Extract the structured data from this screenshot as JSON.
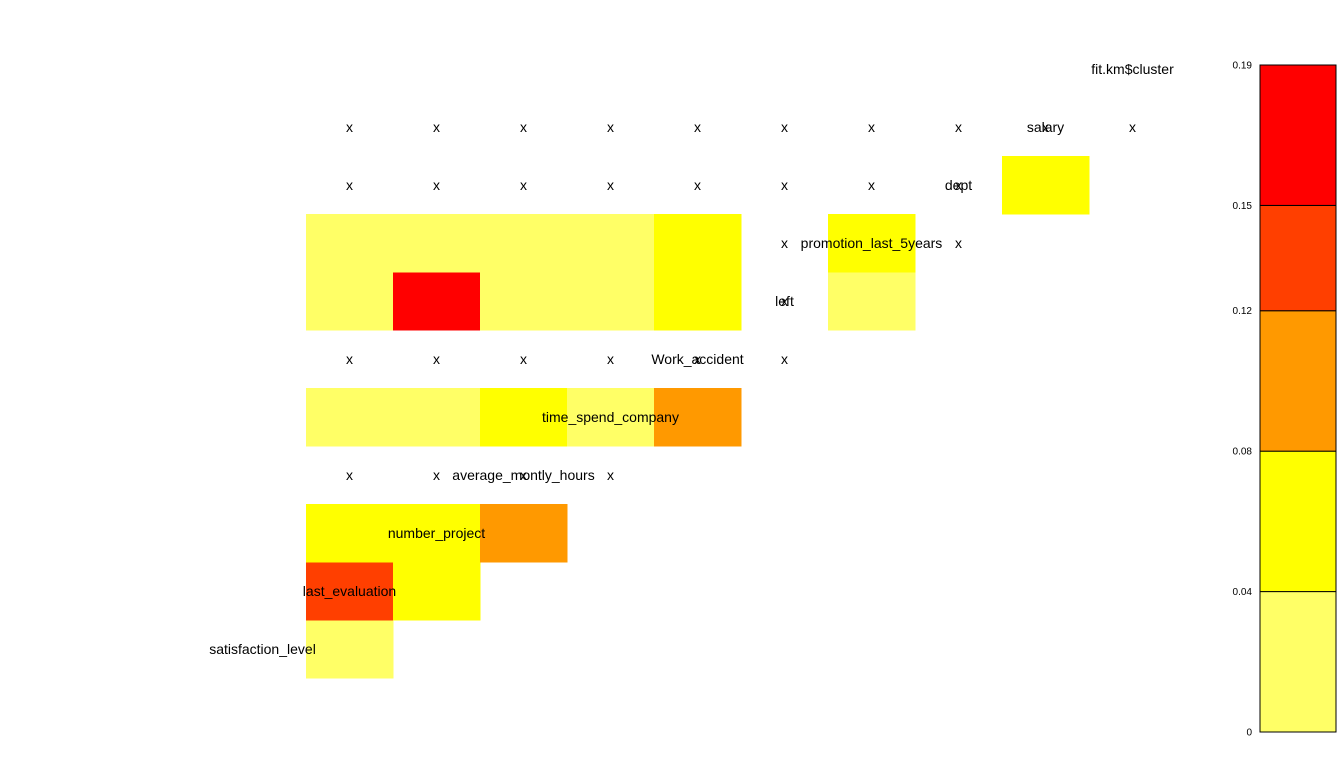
{
  "chart_data": {
    "type": "heatmap",
    "layout": "lower-triangular",
    "variables": [
      "satisfaction_level",
      "last_evaluation",
      "number_project",
      "average_montly_hours",
      "time_spend_company",
      "Work_accident",
      "left",
      "promotion_last_5years",
      "dept",
      "salary",
      "fit.km$cluster"
    ],
    "missing_mark": "x",
    "cells": [
      {
        "row": "last_evaluation",
        "col": "satisfaction_level",
        "value": 0.01
      },
      {
        "row": "number_project",
        "col": "satisfaction_level",
        "value": 0.14
      },
      {
        "row": "number_project",
        "col": "last_evaluation",
        "value": 0.06
      },
      {
        "row": "average_montly_hours",
        "col": "satisfaction_level",
        "value": 0.05
      },
      {
        "row": "average_montly_hours",
        "col": "last_evaluation",
        "value": 0.06
      },
      {
        "row": "average_montly_hours",
        "col": "number_project",
        "value": 0.11
      },
      {
        "row": "time_spend_company",
        "col": "satisfaction_level",
        "value": "x"
      },
      {
        "row": "time_spend_company",
        "col": "last_evaluation",
        "value": "x"
      },
      {
        "row": "time_spend_company",
        "col": "number_project",
        "value": "x"
      },
      {
        "row": "time_spend_company",
        "col": "average_montly_hours",
        "value": "x"
      },
      {
        "row": "Work_accident",
        "col": "satisfaction_level",
        "value": 0.02
      },
      {
        "row": "Work_accident",
        "col": "last_evaluation",
        "value": 0.02
      },
      {
        "row": "Work_accident",
        "col": "number_project",
        "value": 0.06
      },
      {
        "row": "Work_accident",
        "col": "average_montly_hours",
        "value": 0.02
      },
      {
        "row": "Work_accident",
        "col": "time_spend_company",
        "value": 0.1
      },
      {
        "row": "left",
        "col": "satisfaction_level",
        "value": "x"
      },
      {
        "row": "left",
        "col": "last_evaluation",
        "value": "x"
      },
      {
        "row": "left",
        "col": "number_project",
        "value": "x"
      },
      {
        "row": "left",
        "col": "average_montly_hours",
        "value": "x"
      },
      {
        "row": "left",
        "col": "time_spend_company",
        "value": "x"
      },
      {
        "row": "left",
        "col": "Work_accident",
        "value": "x"
      },
      {
        "row": "promotion_last_5years",
        "col": "satisfaction_level",
        "value": 0.02
      },
      {
        "row": "promotion_last_5years",
        "col": "last_evaluation",
        "value": 0.17
      },
      {
        "row": "promotion_last_5years",
        "col": "number_project",
        "value": 0.02
      },
      {
        "row": "promotion_last_5years",
        "col": "average_montly_hours",
        "value": 0.02
      },
      {
        "row": "promotion_last_5years",
        "col": "time_spend_company",
        "value": 0.06
      },
      {
        "row": "promotion_last_5years",
        "col": "Work_accident",
        "value": "x"
      },
      {
        "row": "promotion_last_5years",
        "col": "left",
        "value": 0.02
      },
      {
        "row": "dept",
        "col": "satisfaction_level",
        "value": 0.02
      },
      {
        "row": "dept",
        "col": "last_evaluation",
        "value": 0.02
      },
      {
        "row": "dept",
        "col": "number_project",
        "value": 0.02
      },
      {
        "row": "dept",
        "col": "average_montly_hours",
        "value": 0.02
      },
      {
        "row": "dept",
        "col": "time_spend_company",
        "value": 0.06
      },
      {
        "row": "dept",
        "col": "Work_accident",
        "value": "x"
      },
      {
        "row": "dept",
        "col": "left",
        "value": 0.06
      },
      {
        "row": "dept",
        "col": "promotion_last_5years",
        "value": "x"
      },
      {
        "row": "salary",
        "col": "dept",
        "value": 0.06
      },
      {
        "row": "salary",
        "col": "promotion_last_5years",
        "value": "x"
      },
      {
        "row": "salary",
        "col": "left",
        "value": "x"
      },
      {
        "row": "salary",
        "col": "Work_accident",
        "value": "x"
      },
      {
        "row": "salary",
        "col": "time_spend_company",
        "value": "x"
      },
      {
        "row": "salary",
        "col": "average_montly_hours",
        "value": "x"
      },
      {
        "row": "salary",
        "col": "number_project",
        "value": "x"
      },
      {
        "row": "salary",
        "col": "last_evaluation",
        "value": "x"
      },
      {
        "row": "salary",
        "col": "satisfaction_level",
        "value": "x"
      },
      {
        "row": "fit.km$cluster",
        "col": "salary",
        "value": "x"
      },
      {
        "row": "fit.km$cluster",
        "col": "dept",
        "value": "x"
      },
      {
        "row": "fit.km$cluster",
        "col": "promotion_last_5years",
        "value": "x"
      },
      {
        "row": "fit.km$cluster",
        "col": "left",
        "value": "x"
      },
      {
        "row": "fit.km$cluster",
        "col": "Work_accident",
        "value": "x"
      },
      {
        "row": "fit.km$cluster",
        "col": "time_spend_company",
        "value": "x"
      },
      {
        "row": "fit.km$cluster",
        "col": "average_montly_hours",
        "value": "x"
      },
      {
        "row": "fit.km$cluster",
        "col": "number_project",
        "value": "x"
      },
      {
        "row": "fit.km$cluster",
        "col": "last_evaluation",
        "value": "x"
      },
      {
        "row": "fit.km$cluster",
        "col": "satisfaction_level",
        "value": "x"
      }
    ],
    "color_scale": {
      "ticks": [
        "0",
        "0.04",
        "0.08",
        "0.12",
        "0.15",
        "0.19"
      ],
      "breaks": [
        0,
        0.04,
        0.08,
        0.12,
        0.15,
        0.19
      ],
      "colors": [
        "#FFFF66",
        "#FFFF00",
        "#FF9900",
        "#FF3F00",
        "#FF0000"
      ],
      "legend_position": "right"
    }
  }
}
